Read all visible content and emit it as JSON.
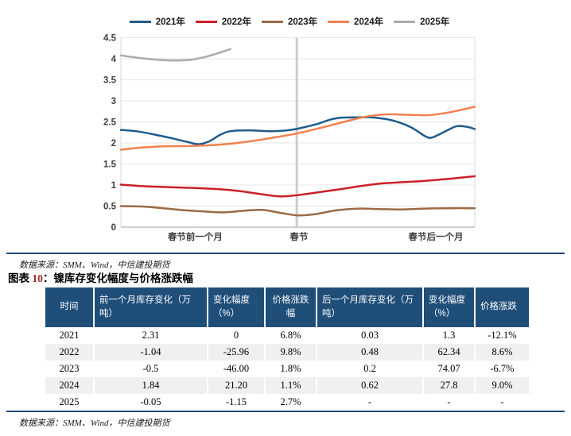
{
  "chart_data": {
    "type": "line",
    "title": "",
    "xlabel": "",
    "ylabel": "",
    "ylim": [
      0,
      4.5
    ],
    "y_ticks": [
      0,
      0.5,
      1,
      1.5,
      2,
      2.5,
      3,
      3.5,
      4,
      4.5
    ],
    "grid": true,
    "legend_position": "top",
    "x_axis": {
      "labels": [
        {
          "text": "春节前一个月",
          "pos": 0.21
        },
        {
          "text": "春节",
          "pos": 0.503
        },
        {
          "text": "春节后一个月",
          "pos": 0.89
        }
      ],
      "marker_label": "春节",
      "marker_pos": 0.497
    },
    "series": [
      {
        "name": "2021年",
        "color": "#1F5C8B",
        "points": [
          [
            0,
            2.31
          ],
          [
            0.05,
            2.27
          ],
          [
            0.1,
            2.19
          ],
          [
            0.15,
            2.1
          ],
          [
            0.19,
            2.02
          ],
          [
            0.22,
            1.97
          ],
          [
            0.25,
            2.04
          ],
          [
            0.28,
            2.19
          ],
          [
            0.31,
            2.28
          ],
          [
            0.36,
            2.3
          ],
          [
            0.42,
            2.28
          ],
          [
            0.47,
            2.3
          ],
          [
            0.5,
            2.34
          ],
          [
            0.55,
            2.44
          ],
          [
            0.59,
            2.55
          ],
          [
            0.62,
            2.6
          ],
          [
            0.67,
            2.61
          ],
          [
            0.72,
            2.6
          ],
          [
            0.77,
            2.53
          ],
          [
            0.82,
            2.37
          ],
          [
            0.86,
            2.16
          ],
          [
            0.88,
            2.13
          ],
          [
            0.92,
            2.29
          ],
          [
            0.95,
            2.4
          ],
          [
            0.98,
            2.38
          ],
          [
            1,
            2.33
          ]
        ]
      },
      {
        "name": "2022年",
        "color": "#CB2027",
        "points": [
          [
            0,
            1.01
          ],
          [
            0.07,
            0.97
          ],
          [
            0.14,
            0.95
          ],
          [
            0.21,
            0.93
          ],
          [
            0.28,
            0.9
          ],
          [
            0.34,
            0.85
          ],
          [
            0.4,
            0.78
          ],
          [
            0.45,
            0.73
          ],
          [
            0.5,
            0.76
          ],
          [
            0.56,
            0.83
          ],
          [
            0.62,
            0.9
          ],
          [
            0.68,
            0.98
          ],
          [
            0.74,
            1.04
          ],
          [
            0.8,
            1.07
          ],
          [
            0.86,
            1.1
          ],
          [
            0.93,
            1.15
          ],
          [
            1,
            1.21
          ]
        ]
      },
      {
        "name": "2023年",
        "color": "#9C6A44",
        "points": [
          [
            0,
            0.5
          ],
          [
            0.06,
            0.49
          ],
          [
            0.12,
            0.45
          ],
          [
            0.18,
            0.4
          ],
          [
            0.24,
            0.37
          ],
          [
            0.29,
            0.35
          ],
          [
            0.35,
            0.39
          ],
          [
            0.4,
            0.41
          ],
          [
            0.45,
            0.34
          ],
          [
            0.5,
            0.28
          ],
          [
            0.55,
            0.31
          ],
          [
            0.61,
            0.4
          ],
          [
            0.67,
            0.44
          ],
          [
            0.73,
            0.43
          ],
          [
            0.79,
            0.42
          ],
          [
            0.85,
            0.44
          ],
          [
            0.92,
            0.45
          ],
          [
            1,
            0.45
          ]
        ]
      },
      {
        "name": "2024年",
        "color": "#F2814F",
        "points": [
          [
            0,
            1.84
          ],
          [
            0.06,
            1.89
          ],
          [
            0.12,
            1.92
          ],
          [
            0.2,
            1.93
          ],
          [
            0.28,
            1.96
          ],
          [
            0.35,
            2.02
          ],
          [
            0.42,
            2.11
          ],
          [
            0.5,
            2.23
          ],
          [
            0.57,
            2.37
          ],
          [
            0.63,
            2.5
          ],
          [
            0.69,
            2.62
          ],
          [
            0.75,
            2.68
          ],
          [
            0.81,
            2.67
          ],
          [
            0.87,
            2.66
          ],
          [
            0.93,
            2.73
          ],
          [
            1,
            2.86
          ]
        ]
      },
      {
        "name": "2025年",
        "color": "#ABABAB",
        "points": [
          [
            0,
            4.08
          ],
          [
            0.05,
            4.02
          ],
          [
            0.1,
            3.98
          ],
          [
            0.15,
            3.96
          ],
          [
            0.2,
            3.98
          ],
          [
            0.25,
            4.07
          ],
          [
            0.31,
            4.23
          ]
        ]
      }
    ]
  },
  "source_note_top": "数据来源：SMM、Wind，中信建投期货",
  "figure_title": {
    "pre": "图表 ",
    "num": "10",
    "post": "：镍库存变化幅度与价格涨跌幅"
  },
  "table": {
    "headers": [
      "时间",
      "前一个月库存变化（万吨）",
      "变化幅度（%）",
      "价格涨跌幅",
      "后一个月库存变化（万吨）",
      "变化幅度（%）",
      "价格涨跌"
    ],
    "rows": [
      [
        "2021",
        "2.31",
        "0",
        "6.8%",
        "0.03",
        "1.3",
        "-12.1%"
      ],
      [
        "2022",
        "-1.04",
        "-25.96",
        "9.8%",
        "0.48",
        "62.34",
        "8.6%"
      ],
      [
        "2023",
        "-0.5",
        "-46.00",
        "1.8%",
        "0.2",
        "74.07",
        "-6.7%"
      ],
      [
        "2024",
        "1.84",
        "21.20",
        "1.1%",
        "0.62",
        "27.8",
        "9.0%"
      ],
      [
        "2025",
        "-0.05",
        "-1.15",
        "2.7%",
        "-",
        "-",
        "-"
      ]
    ]
  },
  "source_note_bottom": "数据来源：SMM、Wind，中信建投期货",
  "colors": {
    "header_bg": "#1F4E79",
    "rule": "#1F4979",
    "stripe": "#F0F0F0",
    "grid": "#E6E6E6",
    "axis": "#BFBFBF",
    "plot_border": "#D9D9D9",
    "marker_line": "#CCCCCC",
    "tick_text": "#3F3F3F",
    "title_num": "#9E2B25"
  }
}
